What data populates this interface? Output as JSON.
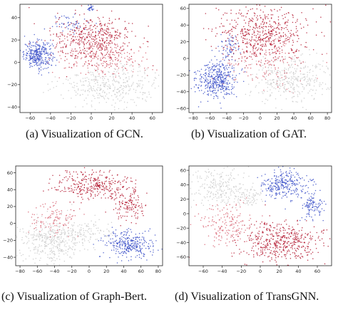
{
  "panels": [
    {
      "id": "gcn",
      "caption": "(a)  Visualization of GCN.",
      "chart_data": {
        "type": "scatter",
        "xlim": [
          -70,
          70
        ],
        "ylim": [
          -45,
          52
        ],
        "xticks": [
          -60,
          -40,
          -20,
          0,
          20,
          40,
          60
        ],
        "yticks": [
          -40,
          -20,
          0,
          20,
          40
        ],
        "grid": false,
        "clusters": [
          {
            "color": "#3a4fc8",
            "cx": -52,
            "cy": 7,
            "sx": 7,
            "sy": 6,
            "n": 320
          },
          {
            "color": "#3a4fc8",
            "cx": -20,
            "cy": 35,
            "sx": 9,
            "sy": 4,
            "n": 50
          },
          {
            "color": "#3a4fc8",
            "cx": -1,
            "cy": 48,
            "sx": 1.5,
            "sy": 1.5,
            "n": 25
          },
          {
            "color": "#b3172f",
            "cx": 2,
            "cy": 20,
            "sx": 20,
            "sy": 11,
            "n": 480
          },
          {
            "color": "#d86070",
            "cx": 15,
            "cy": 2,
            "sx": 24,
            "sy": 8,
            "n": 180
          },
          {
            "color": "#c9c9c9",
            "cx": 20,
            "cy": -20,
            "sx": 25,
            "sy": 9,
            "n": 380
          }
        ]
      }
    },
    {
      "id": "gat",
      "caption": "(b)  Visualization of GAT.",
      "chart_data": {
        "type": "scatter",
        "xlim": [
          -85,
          85
        ],
        "ylim": [
          -65,
          65
        ],
        "xticks": [
          -80,
          -60,
          -40,
          -20,
          0,
          20,
          40,
          60,
          80
        ],
        "yticks": [
          -60,
          -40,
          -20,
          0,
          20,
          40,
          60
        ],
        "grid": false,
        "clusters": [
          {
            "color": "#3a4fc8",
            "cx": -52,
            "cy": -25,
            "sx": 12,
            "sy": 11,
            "n": 420
          },
          {
            "color": "#3a4fc8",
            "cx": -38,
            "cy": 14,
            "sx": 6,
            "sy": 8,
            "n": 60
          },
          {
            "color": "#b3172f",
            "cx": 2,
            "cy": 28,
            "sx": 28,
            "sy": 17,
            "n": 560
          },
          {
            "color": "#d86070",
            "cx": 10,
            "cy": -5,
            "sx": 25,
            "sy": 15,
            "n": 140
          },
          {
            "color": "#c9c9c9",
            "cx": 35,
            "cy": -25,
            "sx": 24,
            "sy": 14,
            "n": 360
          }
        ]
      }
    },
    {
      "id": "graphbert",
      "caption": "(c)  Visualization of Graph-Bert.",
      "chart_data": {
        "type": "scatter",
        "xlim": [
          -85,
          85
        ],
        "ylim": [
          -50,
          68
        ],
        "xticks": [
          -80,
          -60,
          -40,
          -20,
          0,
          20,
          40,
          60,
          80
        ],
        "yticks": [
          -40,
          -20,
          0,
          20,
          40,
          60
        ],
        "grid": false,
        "clusters": [
          {
            "color": "#b3172f",
            "cx": 5,
            "cy": 45,
            "sx": 22,
            "sy": 9,
            "n": 320
          },
          {
            "color": "#b3172f",
            "cx": 45,
            "cy": 22,
            "sx": 10,
            "sy": 10,
            "n": 140
          },
          {
            "color": "#3a4fc8",
            "cx": 45,
            "cy": -25,
            "sx": 14,
            "sy": 8,
            "n": 300
          },
          {
            "color": "#c9c9c9",
            "cx": -45,
            "cy": -20,
            "sx": 18,
            "sy": 13,
            "n": 360
          },
          {
            "color": "#c9c9c9",
            "cx": -5,
            "cy": -10,
            "sx": 15,
            "sy": 8,
            "n": 120
          },
          {
            "color": "#d86070",
            "cx": -40,
            "cy": 5,
            "sx": 15,
            "sy": 10,
            "n": 110
          }
        ]
      }
    },
    {
      "id": "transgnn",
      "caption": "(d)  Visualization of TransGNN.",
      "chart_data": {
        "type": "scatter",
        "xlim": [
          -75,
          75
        ],
        "ylim": [
          -72,
          66
        ],
        "xticks": [
          -60,
          -40,
          -20,
          0,
          20,
          40,
          60
        ],
        "yticks": [
          -60,
          -40,
          -20,
          0,
          20,
          40,
          60
        ],
        "grid": false,
        "clusters": [
          {
            "color": "#3a4fc8",
            "cx": 25,
            "cy": 40,
            "sx": 12,
            "sy": 10,
            "n": 280
          },
          {
            "color": "#3a4fc8",
            "cx": 55,
            "cy": 10,
            "sx": 6,
            "sy": 10,
            "n": 110
          },
          {
            "color": "#c9c9c9",
            "cx": -45,
            "cy": 35,
            "sx": 14,
            "sy": 14,
            "n": 220
          },
          {
            "color": "#c9c9c9",
            "cx": -15,
            "cy": 25,
            "sx": 9,
            "sy": 9,
            "n": 80
          },
          {
            "color": "#b3172f",
            "cx": 20,
            "cy": -40,
            "sx": 22,
            "sy": 14,
            "n": 480
          },
          {
            "color": "#d86070",
            "cx": -35,
            "cy": -15,
            "sx": 15,
            "sy": 15,
            "n": 170
          }
        ]
      }
    }
  ]
}
